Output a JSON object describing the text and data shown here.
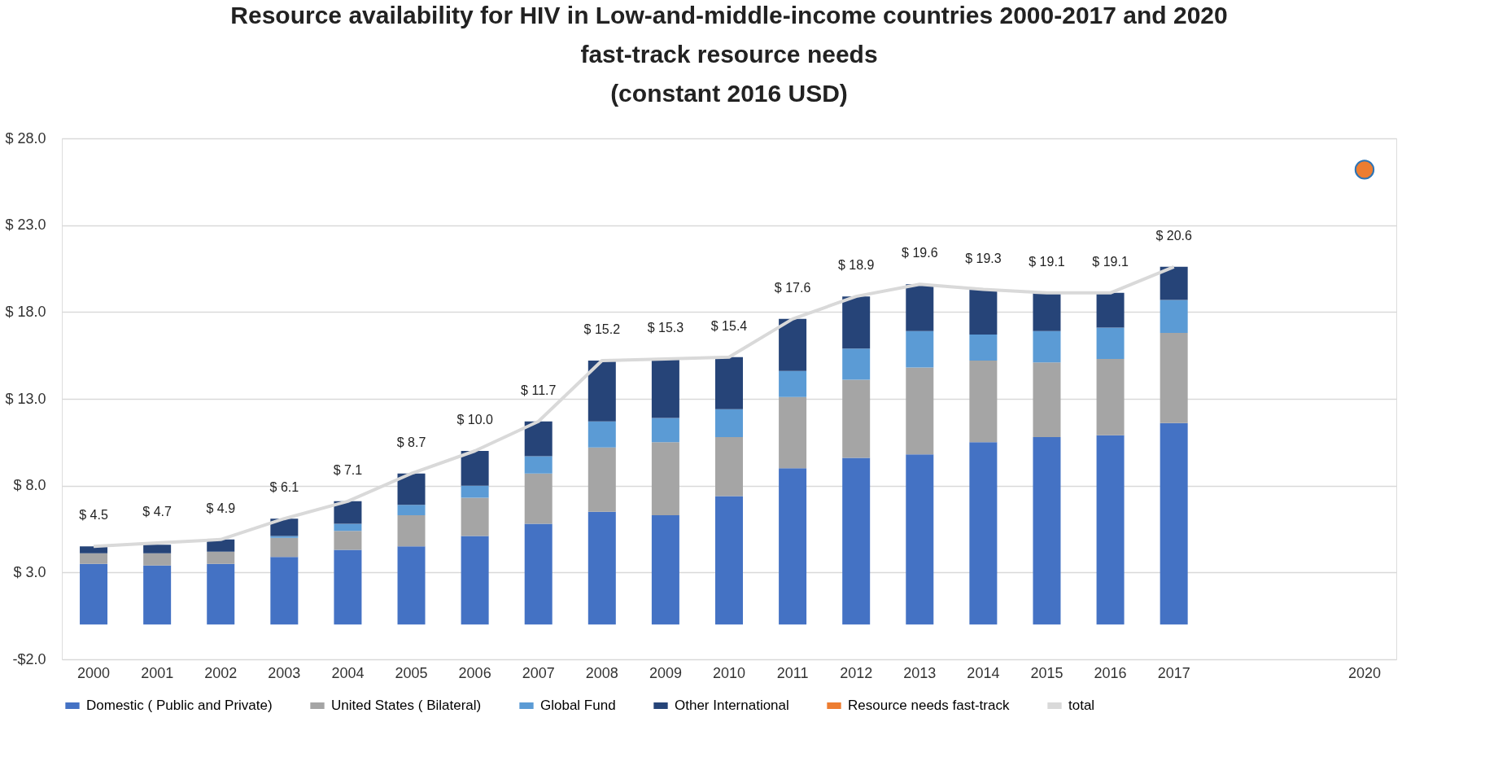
{
  "chart_data": {
    "type": "bar",
    "title": "Resource availability for HIV in Low-and-middle-income countries 2000-2017  and 2020\nfast-track resource needs\n(constant 2016 USD)",
    "categories": [
      "2000",
      "2001",
      "2002",
      "2003",
      "2004",
      "2005",
      "2006",
      "2007",
      "2008",
      "2009",
      "2010",
      "2011",
      "2012",
      "2013",
      "2014",
      "2015",
      "2016",
      "2017",
      null,
      null,
      "2020"
    ],
    "stacked": true,
    "series": [
      {
        "name": "Domestic ( Public and Private)",
        "color": "#4472c4",
        "values": [
          3.5,
          3.4,
          3.5,
          3.9,
          4.3,
          4.5,
          5.1,
          5.8,
          6.5,
          6.3,
          7.4,
          9.0,
          9.6,
          9.8,
          10.5,
          10.8,
          10.9,
          11.6,
          null,
          null,
          null
        ]
      },
      {
        "name": "United States ( Bilateral)",
        "color": "#a5a5a5",
        "values": [
          0.6,
          0.7,
          0.7,
          1.1,
          1.1,
          1.8,
          2.2,
          2.9,
          3.7,
          4.2,
          3.4,
          4.1,
          4.5,
          5.0,
          4.7,
          4.3,
          4.4,
          5.2,
          null,
          null,
          null
        ]
      },
      {
        "name": "Global Fund",
        "color": "#5b9bd5",
        "values": [
          0,
          0,
          0,
          0.1,
          0.4,
          0.6,
          0.7,
          1.0,
          1.5,
          1.4,
          1.6,
          1.5,
          1.8,
          2.1,
          1.5,
          1.8,
          1.8,
          1.9,
          null,
          null,
          null
        ]
      },
      {
        "name": "Other International",
        "color": "#264478",
        "values": [
          0.4,
          0.5,
          0.7,
          1.0,
          1.3,
          1.8,
          2.0,
          2.0,
          3.5,
          3.4,
          3.0,
          3.0,
          3.0,
          2.7,
          2.6,
          2.2,
          2.0,
          1.9,
          null,
          null,
          null
        ]
      },
      {
        "name": "Resource needs fast-track",
        "type": "line",
        "marker": "circle",
        "color": "#ed7d31",
        "values": [
          null,
          null,
          null,
          null,
          null,
          null,
          null,
          null,
          null,
          null,
          null,
          null,
          null,
          null,
          null,
          null,
          null,
          null,
          null,
          null,
          26.2
        ]
      },
      {
        "name": "total",
        "type": "line",
        "marker": "none",
        "color": "#d9d9d9",
        "values": [
          4.5,
          4.7,
          4.9,
          6.1,
          7.1,
          8.7,
          10.0,
          11.7,
          15.2,
          15.3,
          15.4,
          17.6,
          18.9,
          19.6,
          19.3,
          19.1,
          19.1,
          20.6,
          null,
          null,
          null
        ],
        "value_labels": [
          "$ 4.5",
          "$ 4.7",
          "$ 4.9",
          "$ 6.1",
          "$ 7.1",
          "$ 8.7",
          "$ 10.0",
          "$ 11.7",
          "$ 15.2",
          "$ 15.3",
          "$ 15.4",
          "$ 17.6",
          "$ 18.9",
          "$ 19.6",
          "$ 19.3",
          "$ 19.1",
          "$ 19.1",
          "$ 20.6",
          null,
          null,
          null
        ]
      }
    ],
    "ylim": [
      -2,
      28
    ],
    "yticks": [
      {
        "value": -2,
        "label": "-$2.0"
      },
      {
        "value": 3,
        "label": "$ 3.0"
      },
      {
        "value": 8,
        "label": "$ 8.0"
      },
      {
        "value": 13,
        "label": "$ 13.0"
      },
      {
        "value": 18,
        "label": "$ 18.0"
      },
      {
        "value": 23,
        "label": "$ 23.0"
      },
      {
        "value": 28,
        "label": "$ 28.0"
      }
    ],
    "grid": "y",
    "legend": "bottom"
  }
}
